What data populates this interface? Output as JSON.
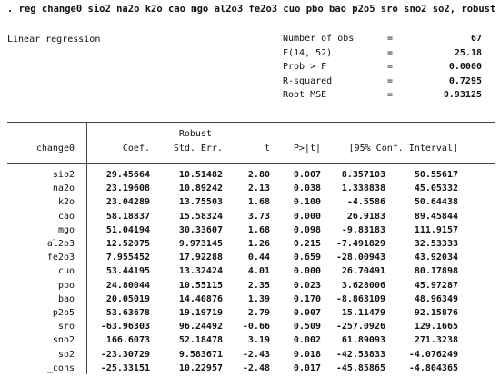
{
  "command": ". reg change0 sio2 na2o k2o cao mgo al2o3 fe2o3 cuo pbo bao p2o5 sro sno2 so2, robust",
  "title": "Linear regression",
  "stats": [
    {
      "label": "Number of obs",
      "eq": "=",
      "value": "67"
    },
    {
      "label": "F(14, 52)",
      "eq": "=",
      "value": "25.18"
    },
    {
      "label": "Prob > F",
      "eq": "=",
      "value": "0.0000"
    },
    {
      "label": "R-squared",
      "eq": "=",
      "value": "0.7295"
    },
    {
      "label": "Root MSE",
      "eq": "=",
      "value": "0.93125"
    }
  ],
  "header": {
    "depvar": "change0",
    "coef": "Coef.",
    "robust": "Robust",
    "se": "Std. Err.",
    "t": "t",
    "p": "P>|t|",
    "ci": "[95% Conf. Interval]"
  },
  "rows": [
    [
      "sio2",
      "29.45664",
      "10.51482",
      "2.80",
      "0.007",
      "8.357103",
      "50.55617"
    ],
    [
      "na2o",
      "23.19608",
      "10.89242",
      "2.13",
      "0.038",
      "1.338838",
      "45.05332"
    ],
    [
      "k2o",
      "23.04289",
      "13.75503",
      "1.68",
      "0.100",
      "-4.5586",
      "50.64438"
    ],
    [
      "cao",
      "58.18837",
      "15.58324",
      "3.73",
      "0.000",
      "26.9183",
      "89.45844"
    ],
    [
      "mgo",
      "51.04194",
      "30.33607",
      "1.68",
      "0.098",
      "-9.83183",
      "111.9157"
    ],
    [
      "al2o3",
      "12.52075",
      "9.973145",
      "1.26",
      "0.215",
      "-7.491829",
      "32.53333"
    ],
    [
      "fe2o3",
      "7.955452",
      "17.92288",
      "0.44",
      "0.659",
      "-28.00943",
      "43.92034"
    ],
    [
      "cuo",
      "53.44195",
      "13.32424",
      "4.01",
      "0.000",
      "26.70491",
      "80.17898"
    ],
    [
      "pbo",
      "24.80044",
      "10.55115",
      "2.35",
      "0.023",
      "3.628006",
      "45.97287"
    ],
    [
      "bao",
      "20.05019",
      "14.40876",
      "1.39",
      "0.170",
      "-8.863109",
      "48.96349"
    ],
    [
      "p2o5",
      "53.63678",
      "19.19719",
      "2.79",
      "0.007",
      "15.11479",
      "92.15876"
    ],
    [
      "sro",
      "-63.96303",
      "96.24492",
      "-0.66",
      "0.509",
      "-257.0926",
      "129.1665"
    ],
    [
      "sno2",
      "166.6073",
      "52.18478",
      "3.19",
      "0.002",
      "61.89093",
      "271.3238"
    ],
    [
      "so2",
      "-23.30729",
      "9.583671",
      "-2.43",
      "0.018",
      "-42.53833",
      "-4.076249"
    ],
    [
      "_cons",
      "-25.33151",
      "10.22957",
      "-2.48",
      "0.017",
      "-45.85865",
      "-4.804365"
    ]
  ]
}
